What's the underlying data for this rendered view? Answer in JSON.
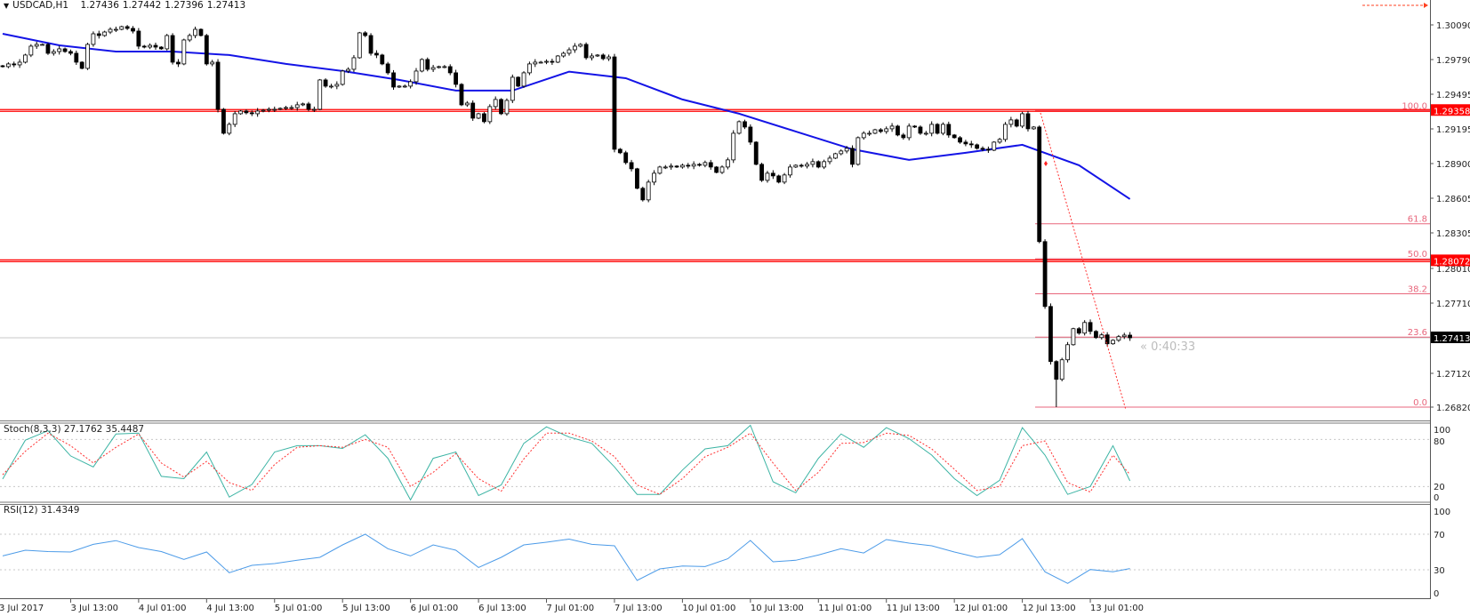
{
  "header": {
    "dropdown_icon": "triangle-down-icon",
    "symbol": "USDCAD,H1",
    "open": "1.27436",
    "high": "1.27442",
    "low": "1.27396",
    "close": "1.27413"
  },
  "timer": "« 0:40:33",
  "colors": {
    "bull_body": "#ffffff",
    "bear_body": "#000000",
    "moving_average": "#1414e6",
    "support_resistance": "#ff0000",
    "fibonacci": "#e8667c",
    "stoch_main": "#3cb4a4",
    "stoch_signal": "#ff3030",
    "rsi": "#4c9be8",
    "price_tag_red": "#ff0000",
    "price_tag_current": "#000000"
  },
  "chart_data": [
    {
      "type": "candlestick",
      "symbol": "USDCAD",
      "timeframe": "H1",
      "first_open": 1.2974,
      "closes": [
        1.29733,
        1.29756,
        1.29748,
        1.29771,
        1.29832,
        1.29908,
        1.29923,
        1.29923,
        1.29847,
        1.29862,
        1.29885,
        1.29862,
        1.29847,
        1.29771,
        1.29718,
        1.29923,
        1.30014,
        1.29999,
        1.30029,
        1.30052,
        1.30052,
        1.30075,
        1.3006,
        1.30037,
        1.29908,
        1.299,
        1.29915,
        1.299,
        1.29885,
        1.29999,
        1.29771,
        1.29756,
        1.29961,
        1.29999,
        1.30052,
        1.29999,
        1.29756,
        1.29771,
        1.29368,
        1.29163,
        1.29239,
        1.2933,
        1.29353,
        1.29338,
        1.2933,
        1.29353,
        1.2936,
        1.29368,
        1.29368,
        1.29376,
        1.29383,
        1.29383,
        1.29406,
        1.29414,
        1.29368,
        1.29368,
        1.29619,
        1.29566,
        1.29566,
        1.29581,
        1.29695,
        1.2971,
        1.29809,
        1.30022,
        1.29999,
        1.29847,
        1.29832,
        1.29756,
        1.2968,
        1.29558,
        1.29566,
        1.29566,
        1.29604,
        1.29695,
        1.29794,
        1.2971,
        1.29725,
        1.29733,
        1.29733,
        1.2968,
        1.29581,
        1.29406,
        1.29421,
        1.29292,
        1.2933,
        1.29262,
        1.29391,
        1.29452,
        1.2933,
        1.29444,
        1.29642,
        1.29566,
        1.2968,
        1.29756,
        1.29771,
        1.29771,
        1.29778,
        1.29771,
        1.29824,
        1.29847,
        1.29877,
        1.29908,
        1.29923,
        1.29809,
        1.29824,
        1.29832,
        1.29801,
        1.29816,
        1.29026,
        1.28996,
        1.28912,
        1.28859,
        1.28692,
        1.28593,
        1.28745,
        1.28821,
        1.28874,
        1.28874,
        1.28882,
        1.28874,
        1.28889,
        1.28882,
        1.28897,
        1.28889,
        1.28912,
        1.28874,
        1.28828,
        1.28874,
        1.28935,
        1.29163,
        1.29262,
        1.29216,
        1.29087,
        1.28897,
        1.2876,
        1.28821,
        1.28798,
        1.28745,
        1.28806,
        1.28874,
        1.28889,
        1.28882,
        1.28897,
        1.2892,
        1.28874,
        1.2892,
        1.2895,
        1.28988,
        1.29011,
        1.29034,
        1.28897,
        1.29125,
        1.29163,
        1.29163,
        1.29193,
        1.29178,
        1.29201,
        1.29224,
        1.29148,
        1.29125,
        1.29224,
        1.29216,
        1.29163,
        1.29163,
        1.29239,
        1.29163,
        1.29239,
        1.29148,
        1.29125,
        1.29087,
        1.29072,
        1.29064,
        1.29034,
        1.29026,
        1.29018,
        1.29087,
        1.2911,
        1.29239,
        1.29277,
        1.29224,
        1.2933,
        1.29201,
        1.29216,
        1.28236,
        1.27681,
        1.2721,
        1.27058,
        1.27225,
        1.27354,
        1.27491,
        1.27453,
        1.27544,
        1.27468,
        1.27415,
        1.27438,
        1.27362,
        1.27392,
        1.27423,
        1.27436,
        1.27413
      ],
      "moving_average": [
        1.30014,
        1.29915,
        1.29862,
        1.29862,
        1.29832,
        1.29756,
        1.29695,
        1.29619,
        1.29528,
        1.29528,
        1.2969,
        1.29634,
        1.29452,
        1.2933,
        1.29178,
        1.29026,
        1.28935,
        1.28996,
        1.29064,
        1.28889,
        1.286
      ],
      "price_axis_ticks": [
        "1.30090",
        "1.29790",
        "1.29495",
        "1.29195",
        "1.28900",
        "1.28605",
        "1.28305",
        "1.28010",
        "1.27710",
        "1.27120",
        "1.26820"
      ],
      "horizontal_lines": [
        {
          "price": 1.29358,
          "label": "1.29358"
        },
        {
          "price": 1.28072,
          "label": "1.28072"
        }
      ],
      "current_price": {
        "price": 1.27413,
        "label": "1.27413"
      },
      "fibonacci": {
        "high": 1.29358,
        "low": 1.2682,
        "levels": [
          {
            "ratio": 1.0,
            "label": "100.0"
          },
          {
            "ratio": 0.618,
            "label": "61.8"
          },
          {
            "ratio": 0.5,
            "label": "50.0"
          },
          {
            "ratio": 0.382,
            "label": "38.2"
          },
          {
            "ratio": 0.236,
            "label": "23.6"
          },
          {
            "ratio": 0.0,
            "label": "0.0"
          }
        ]
      },
      "time_axis_labels": [
        "3 Jul 2017",
        "3 Jul 13:00",
        "4 Jul 01:00",
        "4 Jul 13:00",
        "5 Jul 01:00",
        "5 Jul 13:00",
        "6 Jul 01:00",
        "6 Jul 13:00",
        "7 Jul 01:00",
        "7 Jul 13:00",
        "10 Jul 01:00",
        "10 Jul 13:00",
        "11 Jul 01:00",
        "11 Jul 13:00",
        "12 Jul 01:00",
        "12 Jul 13:00",
        "13 Jul 01:00"
      ]
    },
    {
      "type": "line",
      "label": "Stoch(8,3,3) 27.1762 35.4487",
      "ylim": [
        0,
        100
      ],
      "levels": [
        80,
        20
      ],
      "axis_ticks": [
        "100",
        "80",
        "20",
        "0"
      ],
      "series": [
        {
          "values": [
            29.6,
            79,
            91,
            59,
            45,
            87,
            88,
            33,
            30,
            64,
            6.6,
            22.7,
            64,
            72,
            72,
            68.5,
            86,
            56,
            3,
            56,
            64,
            8.5,
            22,
            75,
            96,
            83,
            75,
            45,
            10,
            10,
            41,
            68,
            72,
            98,
            26,
            12,
            56,
            87,
            70,
            95,
            81,
            60,
            30,
            8.5,
            28,
            95,
            60,
            10,
            20,
            72,
            27.18
          ]
        },
        {
          "values": [
            35,
            65,
            88,
            72,
            50,
            70,
            87,
            50,
            32,
            52,
            25,
            15,
            48,
            70,
            72,
            70,
            80,
            70,
            20,
            38,
            62,
            30,
            14,
            55,
            88,
            88,
            78,
            58,
            22,
            10,
            30,
            58,
            70,
            88,
            50,
            15,
            38,
            75,
            76,
            88,
            85,
            68,
            42,
            15,
            20,
            72,
            78,
            25,
            13,
            60,
            35.45
          ]
        }
      ]
    },
    {
      "type": "line",
      "label": "RSI(12) 31.4349",
      "ylim": [
        0,
        100
      ],
      "levels": [
        70,
        30
      ],
      "axis_ticks": [
        "100",
        "70",
        "30",
        "0"
      ],
      "series": [
        {
          "values": [
            45.6,
            52,
            50.5,
            50,
            58.6,
            62.8,
            55,
            50.5,
            41.7,
            50,
            26.7,
            35,
            37,
            40.7,
            44,
            58,
            70,
            53.7,
            45.6,
            58,
            52,
            32.6,
            44,
            58,
            61,
            64.5,
            58.6,
            57,
            18,
            31,
            34.2,
            33.6,
            42.4,
            63,
            39,
            40.7,
            46.6,
            53.7,
            48.9,
            64,
            60,
            57,
            50,
            44,
            47,
            65,
            27.7,
            14.7,
            30.3,
            27.7,
            31.43
          ]
        }
      ]
    }
  ]
}
